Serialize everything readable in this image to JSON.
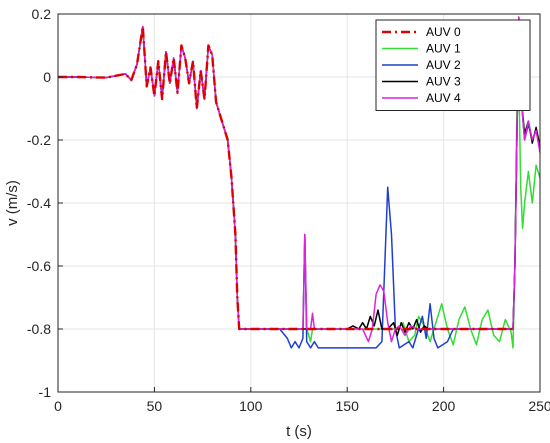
{
  "chart_data": {
    "type": "line",
    "xlabel": "t (s)",
    "ylabel": "v (m/s)",
    "xlim": [
      0,
      250
    ],
    "ylim": [
      -1,
      0.2
    ],
    "xticks": [
      0,
      50,
      100,
      150,
      200,
      250
    ],
    "yticks": [
      0.2,
      0,
      -0.2,
      -0.4,
      -0.6,
      -0.8,
      -1
    ],
    "xtick_labels": [
      "0",
      "50",
      "100",
      "150",
      "200",
      "250"
    ],
    "ytick_labels": [
      "0.2",
      "0",
      "-0.2",
      "-0.4",
      "-0.6",
      "-0.8",
      "-1"
    ],
    "grid": true,
    "legend_position": "top-right",
    "series": [
      {
        "name": "AUV 0",
        "color": "#dd0000",
        "dash": "dashdot",
        "points": [
          [
            0,
            0
          ],
          [
            10,
            0
          ],
          [
            25,
            -0.002
          ],
          [
            35,
            0.01
          ],
          [
            38,
            -0.01
          ],
          [
            41,
            0.04
          ],
          [
            44,
            0.16
          ],
          [
            46,
            -0.03
          ],
          [
            48,
            0.03
          ],
          [
            50,
            -0.06
          ],
          [
            52,
            0.05
          ],
          [
            54,
            -0.07
          ],
          [
            56,
            0.08
          ],
          [
            58,
            -0.02
          ],
          [
            60,
            0.06
          ],
          [
            62,
            -0.05
          ],
          [
            64,
            0.1
          ],
          [
            66,
            0.06
          ],
          [
            68,
            -0.02
          ],
          [
            70,
            0.05
          ],
          [
            72,
            -0.1
          ],
          [
            74,
            0.02
          ],
          [
            76,
            -0.07
          ],
          [
            78,
            0.1
          ],
          [
            80,
            0.07
          ],
          [
            82,
            -0.08
          ],
          [
            85,
            -0.14
          ],
          [
            88,
            -0.2
          ],
          [
            90,
            -0.32
          ],
          [
            92,
            -0.5
          ],
          [
            93,
            -0.7
          ],
          [
            94,
            -0.8
          ],
          [
            100,
            -0.8
          ],
          [
            120,
            -0.8
          ],
          [
            150,
            -0.8
          ],
          [
            200,
            -0.8
          ],
          [
            236,
            -0.8
          ]
        ]
      },
      {
        "name": "AUV 1",
        "color": "#33dd33",
        "dash": "solid",
        "points": [
          [
            0,
            0
          ],
          [
            10,
            0
          ],
          [
            25,
            -0.002
          ],
          [
            35,
            0.01
          ],
          [
            38,
            -0.01
          ],
          [
            41,
            0.04
          ],
          [
            44,
            0.16
          ],
          [
            46,
            -0.03
          ],
          [
            48,
            0.03
          ],
          [
            50,
            -0.06
          ],
          [
            52,
            0.05
          ],
          [
            54,
            -0.07
          ],
          [
            56,
            0.08
          ],
          [
            58,
            -0.02
          ],
          [
            60,
            0.06
          ],
          [
            62,
            -0.05
          ],
          [
            64,
            0.1
          ],
          [
            66,
            0.06
          ],
          [
            68,
            -0.02
          ],
          [
            70,
            0.05
          ],
          [
            72,
            -0.1
          ],
          [
            74,
            0.02
          ],
          [
            76,
            -0.07
          ],
          [
            78,
            0.1
          ],
          [
            80,
            0.07
          ],
          [
            82,
            -0.08
          ],
          [
            85,
            -0.14
          ],
          [
            88,
            -0.2
          ],
          [
            90,
            -0.32
          ],
          [
            92,
            -0.5
          ],
          [
            93,
            -0.7
          ],
          [
            94,
            -0.8
          ],
          [
            120,
            -0.8
          ],
          [
            127,
            -0.8
          ],
          [
            128,
            -0.5
          ],
          [
            129,
            -0.8
          ],
          [
            131,
            -0.84
          ],
          [
            132,
            -0.8
          ],
          [
            170,
            -0.8
          ],
          [
            176,
            -0.8
          ],
          [
            179,
            -0.78
          ],
          [
            182,
            -0.84
          ],
          [
            185,
            -0.82
          ],
          [
            187,
            -0.76
          ],
          [
            190,
            -0.79
          ],
          [
            193,
            -0.84
          ],
          [
            196,
            -0.78
          ],
          [
            199,
            -0.72
          ],
          [
            202,
            -0.8
          ],
          [
            205,
            -0.85
          ],
          [
            208,
            -0.77
          ],
          [
            211,
            -0.73
          ],
          [
            214,
            -0.8
          ],
          [
            217,
            -0.85
          ],
          [
            220,
            -0.77
          ],
          [
            223,
            -0.74
          ],
          [
            226,
            -0.82
          ],
          [
            229,
            -0.84
          ],
          [
            232,
            -0.77
          ],
          [
            235,
            -0.81
          ],
          [
            236,
            -0.86
          ],
          [
            237,
            -0.6
          ],
          [
            238,
            -0.1
          ],
          [
            239,
            0.0
          ],
          [
            240,
            -0.35
          ],
          [
            241,
            -0.48
          ],
          [
            242,
            -0.4
          ],
          [
            244,
            -0.3
          ],
          [
            246,
            -0.4
          ],
          [
            248,
            -0.28
          ],
          [
            250,
            -0.32
          ]
        ]
      },
      {
        "name": "AUV 2",
        "color": "#1f3fcc",
        "dash": "solid",
        "points": [
          [
            0,
            0
          ],
          [
            10,
            0
          ],
          [
            25,
            -0.002
          ],
          [
            35,
            0.01
          ],
          [
            38,
            -0.01
          ],
          [
            41,
            0.04
          ],
          [
            44,
            0.16
          ],
          [
            46,
            -0.03
          ],
          [
            48,
            0.03
          ],
          [
            50,
            -0.06
          ],
          [
            52,
            0.05
          ],
          [
            54,
            -0.07
          ],
          [
            56,
            0.08
          ],
          [
            58,
            -0.02
          ],
          [
            60,
            0.06
          ],
          [
            62,
            -0.05
          ],
          [
            64,
            0.1
          ],
          [
            66,
            0.06
          ],
          [
            68,
            -0.02
          ],
          [
            70,
            0.05
          ],
          [
            72,
            -0.1
          ],
          [
            74,
            0.02
          ],
          [
            76,
            -0.07
          ],
          [
            78,
            0.1
          ],
          [
            80,
            0.07
          ],
          [
            82,
            -0.08
          ],
          [
            85,
            -0.14
          ],
          [
            88,
            -0.2
          ],
          [
            90,
            -0.32
          ],
          [
            92,
            -0.5
          ],
          [
            93,
            -0.7
          ],
          [
            94,
            -0.8
          ],
          [
            115,
            -0.8
          ],
          [
            119,
            -0.83
          ],
          [
            121,
            -0.86
          ],
          [
            123,
            -0.84
          ],
          [
            125,
            -0.86
          ],
          [
            127,
            -0.83
          ],
          [
            128,
            -0.5
          ],
          [
            129,
            -0.84
          ],
          [
            131,
            -0.86
          ],
          [
            133,
            -0.84
          ],
          [
            135,
            -0.86
          ],
          [
            165,
            -0.86
          ],
          [
            168,
            -0.84
          ],
          [
            171,
            -0.35
          ],
          [
            173,
            -0.5
          ],
          [
            175,
            -0.8
          ],
          [
            177,
            -0.86
          ],
          [
            182,
            -0.84
          ],
          [
            184,
            -0.86
          ],
          [
            187,
            -0.8
          ],
          [
            189,
            -0.76
          ],
          [
            191,
            -0.83
          ],
          [
            193,
            -0.72
          ],
          [
            195,
            -0.83
          ],
          [
            197,
            -0.86
          ],
          [
            202,
            -0.84
          ],
          [
            205,
            -0.8
          ],
          [
            206,
            -0.8
          ],
          [
            230,
            -0.8
          ],
          [
            236,
            -0.8
          ],
          [
            237,
            -0.6
          ],
          [
            239,
            0.19
          ],
          [
            240,
            -0.05
          ],
          [
            242,
            -0.2
          ],
          [
            244,
            -0.15
          ],
          [
            246,
            -0.2
          ],
          [
            248,
            -0.17
          ],
          [
            250,
            -0.23
          ]
        ]
      },
      {
        "name": "AUV 3",
        "color": "#000000",
        "dash": "solid",
        "points": [
          [
            0,
            0
          ],
          [
            10,
            0
          ],
          [
            25,
            -0.002
          ],
          [
            35,
            0.01
          ],
          [
            38,
            -0.01
          ],
          [
            41,
            0.04
          ],
          [
            44,
            0.16
          ],
          [
            46,
            -0.03
          ],
          [
            48,
            0.03
          ],
          [
            50,
            -0.06
          ],
          [
            52,
            0.05
          ],
          [
            54,
            -0.07
          ],
          [
            56,
            0.08
          ],
          [
            58,
            -0.02
          ],
          [
            60,
            0.06
          ],
          [
            62,
            -0.05
          ],
          [
            64,
            0.1
          ],
          [
            66,
            0.06
          ],
          [
            68,
            -0.02
          ],
          [
            70,
            0.05
          ],
          [
            72,
            -0.1
          ],
          [
            74,
            0.02
          ],
          [
            76,
            -0.07
          ],
          [
            78,
            0.1
          ],
          [
            80,
            0.07
          ],
          [
            82,
            -0.08
          ],
          [
            85,
            -0.14
          ],
          [
            88,
            -0.2
          ],
          [
            90,
            -0.32
          ],
          [
            92,
            -0.5
          ],
          [
            93,
            -0.7
          ],
          [
            94,
            -0.8
          ],
          [
            150,
            -0.8
          ],
          [
            153,
            -0.79
          ],
          [
            156,
            -0.8
          ],
          [
            158,
            -0.78
          ],
          [
            160,
            -0.8
          ],
          [
            162,
            -0.76
          ],
          [
            164,
            -0.79
          ],
          [
            166,
            -0.74
          ],
          [
            168,
            -0.8
          ],
          [
            171,
            -0.8
          ],
          [
            174,
            -0.78
          ],
          [
            176,
            -0.82
          ],
          [
            178,
            -0.78
          ],
          [
            180,
            -0.81
          ],
          [
            182,
            -0.78
          ],
          [
            184,
            -0.8
          ],
          [
            186,
            -0.77
          ],
          [
            188,
            -0.81
          ],
          [
            190,
            -0.79
          ],
          [
            192,
            -0.8
          ],
          [
            236,
            -0.8
          ],
          [
            237,
            -0.6
          ],
          [
            239,
            0.19
          ],
          [
            240,
            -0.05
          ],
          [
            242,
            -0.18
          ],
          [
            244,
            -0.14
          ],
          [
            246,
            -0.21
          ],
          [
            248,
            -0.16
          ],
          [
            250,
            -0.22
          ]
        ]
      },
      {
        "name": "AUV 4",
        "color": "#dd22dd",
        "dash": "solid",
        "points": [
          [
            0,
            0
          ],
          [
            10,
            0
          ],
          [
            25,
            -0.002
          ],
          [
            35,
            0.01
          ],
          [
            38,
            -0.01
          ],
          [
            41,
            0.04
          ],
          [
            44,
            0.16
          ],
          [
            46,
            -0.03
          ],
          [
            48,
            0.03
          ],
          [
            50,
            -0.06
          ],
          [
            52,
            0.05
          ],
          [
            54,
            -0.07
          ],
          [
            56,
            0.08
          ],
          [
            58,
            -0.02
          ],
          [
            60,
            0.06
          ],
          [
            62,
            -0.05
          ],
          [
            64,
            0.1
          ],
          [
            66,
            0.06
          ],
          [
            68,
            -0.02
          ],
          [
            70,
            0.05
          ],
          [
            72,
            -0.1
          ],
          [
            74,
            0.02
          ],
          [
            76,
            -0.07
          ],
          [
            78,
            0.1
          ],
          [
            80,
            0.07
          ],
          [
            82,
            -0.08
          ],
          [
            85,
            -0.14
          ],
          [
            88,
            -0.2
          ],
          [
            90,
            -0.32
          ],
          [
            92,
            -0.5
          ],
          [
            93,
            -0.7
          ],
          [
            94,
            -0.8
          ],
          [
            126,
            -0.8
          ],
          [
            127,
            -0.8
          ],
          [
            128,
            -0.5
          ],
          [
            129,
            -0.8
          ],
          [
            131,
            -0.8
          ],
          [
            132,
            -0.75
          ],
          [
            133,
            -0.8
          ],
          [
            158,
            -0.8
          ],
          [
            161,
            -0.84
          ],
          [
            163,
            -0.8
          ],
          [
            165,
            -0.69
          ],
          [
            167,
            -0.66
          ],
          [
            169,
            -0.68
          ],
          [
            171,
            -0.78
          ],
          [
            173,
            -0.84
          ],
          [
            175,
            -0.8
          ],
          [
            177,
            -0.79
          ],
          [
            180,
            -0.82
          ],
          [
            183,
            -0.79
          ],
          [
            186,
            -0.8
          ],
          [
            236,
            -0.8
          ],
          [
            237,
            -0.6
          ],
          [
            239,
            0.19
          ],
          [
            240,
            -0.05
          ],
          [
            242,
            -0.2
          ],
          [
            244,
            -0.14
          ],
          [
            246,
            -0.2
          ],
          [
            248,
            -0.17
          ],
          [
            250,
            -0.24
          ]
        ]
      }
    ]
  }
}
